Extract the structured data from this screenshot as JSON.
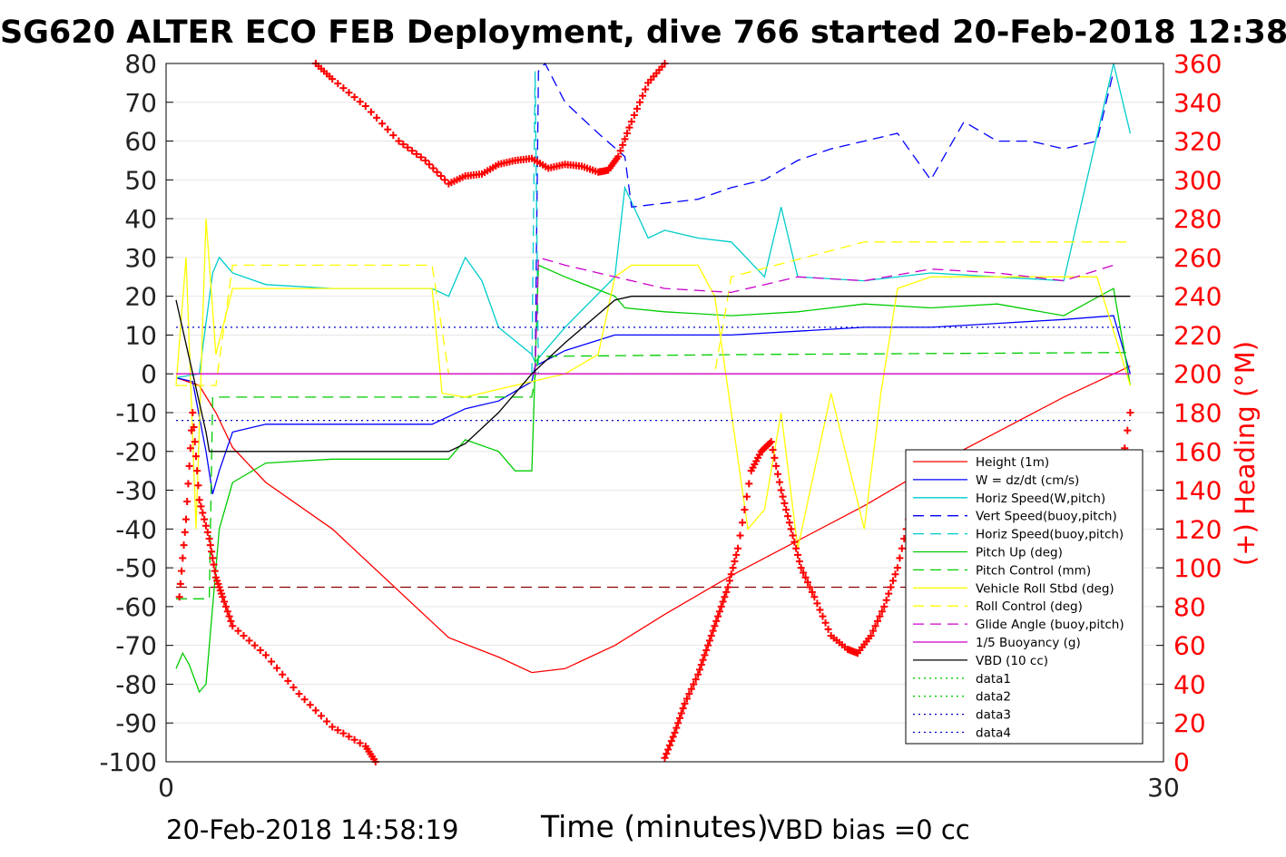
{
  "footer": {
    "timestamp": "20-Feb-2018 14:58:19",
    "vbd_bias": "VBD bias =0 cc"
  },
  "chart_data": {
    "type": "line",
    "title": "SG620 ALTER ECO FEB Deployment, dive 766 started 20-Feb-2018 12:38",
    "xlabel": "Time (minutes)",
    "ylabel_right": "(+) Heading (°M)",
    "xlim": [
      0,
      30
    ],
    "ylim": [
      -100,
      80
    ],
    "ylim_right": [
      0,
      360
    ],
    "x_ticks": [
      0,
      30
    ],
    "y_ticks": [
      80,
      70,
      60,
      50,
      40,
      30,
      20,
      10,
      0,
      -10,
      -20,
      -30,
      -40,
      -50,
      -60,
      -70,
      -80,
      -90,
      -100
    ],
    "y_ticks_right": [
      360,
      340,
      320,
      300,
      280,
      260,
      240,
      220,
      200,
      180,
      160,
      140,
      120,
      100,
      80,
      60,
      40,
      20,
      0
    ],
    "grid": true,
    "legend_position": "bottom-right",
    "colors": {
      "right_axis": "#ff0000"
    },
    "series": [
      {
        "name": "Height (1m)",
        "color": "#ff0000",
        "style": "solid",
        "x": [
          0.3,
          1.0,
          1.5,
          2.0,
          3.0,
          5.0,
          8.5,
          10.0,
          11.0,
          12.0,
          13.5,
          15.0,
          17.0,
          19.0,
          21.0,
          23.0,
          25.0,
          27.0,
          29.0
        ],
        "y": [
          -1,
          -3,
          -10,
          -19,
          -28,
          -40,
          -68,
          -73,
          -77,
          -76,
          -70,
          -62,
          -52,
          -43,
          -34,
          -24,
          -15,
          -6,
          2
        ]
      },
      {
        "name": "W = dz/dt (cm/s)",
        "color": "#0000ff",
        "style": "solid",
        "x": [
          0.3,
          0.8,
          1.2,
          1.4,
          1.6,
          2.0,
          3.0,
          5.0,
          8.0,
          8.5,
          9.0,
          10.0,
          11.0,
          11.1,
          12.0,
          13.5,
          15.0,
          17.0,
          19.0,
          21.0,
          23.0,
          25.0,
          27.0,
          28.5,
          29.0
        ],
        "y": [
          -1,
          -2,
          -20,
          -31,
          -25,
          -15,
          -13,
          -13,
          -13,
          -11,
          -9,
          -7,
          -2,
          2,
          6,
          10,
          10,
          10,
          11,
          12,
          12,
          13,
          14,
          15,
          0
        ]
      },
      {
        "name": "Horiz Speed(W,pitch)",
        "color": "#00cccc",
        "style": "solid",
        "x": [
          0.3,
          1.0,
          1.4,
          1.6,
          2.0,
          3.0,
          5.0,
          8.0,
          8.5,
          9.0,
          9.5,
          10.0,
          11.0,
          11.1,
          12.0,
          13.5,
          13.8,
          14.5,
          15.0,
          16.0,
          17.0,
          18.0,
          18.5,
          19.0,
          21.0,
          23.0,
          25.0,
          27.0,
          28.5,
          29.0
        ],
        "y": [
          -1,
          0,
          26,
          30,
          26,
          23,
          22,
          22,
          20,
          30,
          24,
          12,
          5,
          3,
          12,
          25,
          48,
          35,
          37,
          35,
          34,
          25,
          43,
          25,
          24,
          26,
          25,
          24,
          80,
          62
        ]
      },
      {
        "name": "Vert Speed(buoy,pitch)",
        "color": "#0000ff",
        "style": "dashed",
        "x": [
          11.1,
          11.2,
          11.4,
          12.0,
          13.0,
          13.8,
          14.0,
          16.0,
          17.0,
          18.0,
          19.0,
          20.0,
          21.0,
          22.0,
          23.0,
          24.0,
          25.0,
          26.0,
          27.0,
          28.0,
          28.5
        ],
        "y": [
          0,
          78,
          80,
          70,
          62,
          56,
          43,
          45,
          48,
          50,
          55,
          58,
          60,
          62,
          50,
          65,
          60,
          60,
          58,
          60,
          78
        ]
      },
      {
        "name": "Horiz Speed(buoy,pitch)",
        "color": "#00cccc",
        "style": "dashed",
        "x": [
          11.0,
          11.1,
          11.2
        ],
        "y": [
          0,
          78,
          0
        ]
      },
      {
        "name": "Pitch Up (deg)",
        "color": "#00cc00",
        "style": "solid",
        "x": [
          0.3,
          0.5,
          0.7,
          1.0,
          1.2,
          1.4,
          1.6,
          2.0,
          3.0,
          5.0,
          8.0,
          8.5,
          9.0,
          10.0,
          10.5,
          11.0,
          11.2,
          12.0,
          13.5,
          13.8,
          15.0,
          17.0,
          19.0,
          21.0,
          23.0,
          25.0,
          27.0,
          28.5,
          29.0
        ],
        "y": [
          -76,
          -72,
          -75,
          -82,
          -80,
          -60,
          -40,
          -28,
          -23,
          -22,
          -22,
          -22,
          -17,
          -20,
          -25,
          -25,
          28,
          25,
          20,
          17,
          16,
          15,
          16,
          18,
          17,
          18,
          15,
          22,
          -3
        ]
      },
      {
        "name": "Pitch Control (mm)",
        "color": "#00cc00",
        "style": "dashed",
        "x": [
          0.3,
          1.3,
          1.4,
          8.0,
          11.0,
          11.2,
          18.0,
          29.0
        ],
        "y": [
          -58,
          -58,
          -6,
          -6,
          -6,
          4.5,
          5,
          5.5
        ]
      },
      {
        "name": "Vehicle Roll Stbd (deg)",
        "color": "#ffff00",
        "style": "solid",
        "x": [
          0.3,
          0.6,
          0.9,
          1.2,
          1.5,
          2.0,
          3.0,
          5.0,
          8.0,
          8.3,
          9.0,
          10.0,
          11.0,
          12.0,
          13.0,
          13.5,
          14.0,
          16.0,
          16.5,
          17.0,
          17.5,
          18.0,
          18.5,
          19.0,
          20.0,
          21.0,
          21.5,
          22.0,
          23.0,
          24.0,
          25.0,
          26.0,
          27.0,
          28.0,
          29.0
        ],
        "y": [
          -3,
          30,
          -40,
          40,
          5,
          22,
          22,
          22,
          22,
          -5,
          -6,
          -4,
          -2,
          0,
          5,
          25,
          28,
          28,
          20,
          -10,
          -40,
          -35,
          -10,
          -45,
          -5,
          -40,
          -5,
          22,
          25,
          25,
          25,
          25,
          25,
          25,
          -3
        ]
      },
      {
        "name": "Roll Control (deg)",
        "color": "#ffff00",
        "style": "dashed",
        "x": [
          0.3,
          1.5,
          2.0,
          8.0,
          8.5,
          16.5,
          17.0,
          21.0,
          29.0
        ],
        "y": [
          -3,
          -3,
          28,
          28,
          0,
          0,
          25,
          34,
          34
        ]
      },
      {
        "name": "Glide Angle (buoy,pitch)",
        "color": "#cc00cc",
        "style": "dashed",
        "x": [
          11.1,
          11.2,
          12.0,
          13.5,
          15.0,
          17.0,
          19.0,
          21.0,
          23.0,
          25.0,
          27.0,
          28.5
        ],
        "y": [
          0,
          30,
          28,
          25,
          22,
          21,
          25,
          24,
          27,
          26,
          24,
          28
        ]
      },
      {
        "name": "1/5 Buoyancy (g)",
        "color": "#cc00cc",
        "style": "solid",
        "x": [
          0.3,
          11.0,
          29.0
        ],
        "y": [
          0,
          0,
          0
        ]
      },
      {
        "name": "VBD (10 cc)",
        "color": "#000000",
        "style": "solid",
        "x": [
          0.3,
          1.2,
          1.3,
          3.0,
          8.5,
          9.0,
          10.0,
          11.0,
          12.0,
          13.5,
          14.0,
          15.0,
          20.0,
          25.0,
          28.0,
          29.0
        ],
        "y": [
          19,
          -15,
          -20,
          -20,
          -20,
          -18,
          -10,
          0,
          8,
          19,
          20,
          20,
          20,
          20,
          20,
          20
        ]
      },
      {
        "name": "data1",
        "color": "#00cc00",
        "style": "dotted",
        "x": [],
        "y": []
      },
      {
        "name": "data2",
        "color": "#00cc00",
        "style": "dotted",
        "x": [],
        "y": []
      },
      {
        "name": "data3",
        "color": "#0000cc",
        "style": "dotted",
        "x": [
          0.3,
          29.0
        ],
        "y": [
          12,
          12
        ]
      },
      {
        "name": "data4",
        "color": "#0000cc",
        "style": "dotted",
        "x": [
          0.3,
          29.0
        ],
        "y": [
          -12,
          -12
        ]
      }
    ],
    "extra_lines": [
      {
        "color": "#8b0000",
        "style": "dashed",
        "x": [
          0.3,
          29.0
        ],
        "y": [
          -55,
          -55
        ]
      }
    ],
    "heading_series": {
      "name": "(+) Heading",
      "axis": "right",
      "color": "#ff0000",
      "marker": "+",
      "segments": [
        {
          "x": [
            4.5,
            5.0,
            6.0,
            7.0,
            7.8,
            8.5,
            9.0,
            9.5,
            10.0,
            10.5,
            11.0,
            11.5,
            12.0,
            12.5,
            13.0,
            13.3,
            13.6,
            14.0,
            14.5,
            15.0
          ],
          "y": [
            360,
            352,
            338,
            320,
            310,
            298,
            302,
            303,
            308,
            310,
            311,
            306,
            308,
            307,
            304,
            305,
            312,
            330,
            350,
            360
          ]
        },
        {
          "x": [
            0.4,
            0.6,
            0.8,
            1.0,
            1.3,
            1.5,
            1.7,
            2.0,
            3.0,
            4.0,
            5.0,
            6.0,
            6.3
          ],
          "y": [
            85,
            125,
            180,
            135,
            115,
            95,
            85,
            70,
            55,
            35,
            18,
            8,
            0
          ]
        },
        {
          "x": [
            15.0,
            15.3,
            15.6,
            16.0,
            16.3,
            16.6,
            16.9,
            17.2,
            17.6,
            17.9,
            18.2,
            18.5,
            18.8,
            19.1,
            19.5,
            20.0,
            20.5,
            20.8,
            21.2,
            21.6,
            22.0,
            22.4,
            22.8,
            23.2,
            23.6,
            24.0,
            24.5,
            25.0,
            25.5,
            26.0,
            26.5,
            27.0,
            27.5,
            28.0,
            28.5,
            29.0
          ],
          "y": [
            2,
            15,
            30,
            45,
            60,
            75,
            90,
            110,
            150,
            160,
            165,
            140,
            120,
            100,
            85,
            65,
            58,
            56,
            65,
            80,
            100,
            130,
            135,
            130,
            90,
            75,
            65,
            62,
            58,
            60,
            75,
            90,
            130,
            140,
            125,
            180
          ]
        }
      ]
    }
  }
}
